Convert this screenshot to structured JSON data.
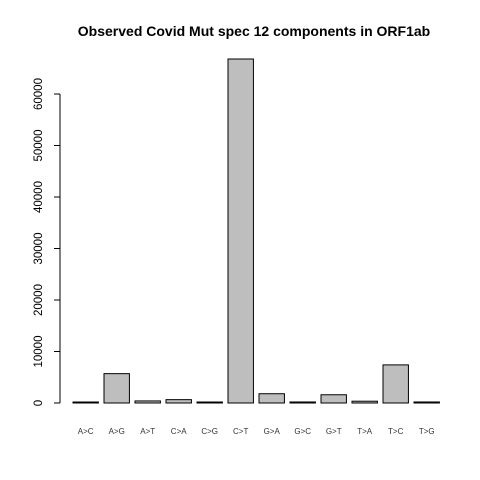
{
  "chart_data": {
    "type": "bar",
    "title": "Observed Covid Mut spec 12 components in ORF1ab",
    "xlabel": "",
    "ylabel": "",
    "categories": [
      "A>C",
      "A>G",
      "A>T",
      "C>A",
      "C>G",
      "C>T",
      "G>A",
      "G>C",
      "G>T",
      "T>A",
      "T>C",
      "T>G"
    ],
    "values": [
      150,
      5700,
      400,
      650,
      50,
      66800,
      1800,
      200,
      1600,
      350,
      7400,
      200
    ],
    "ylim": [
      0,
      66800
    ],
    "yticks": [
      0,
      10000,
      20000,
      30000,
      40000,
      50000,
      60000
    ],
    "ytick_labels": [
      "0",
      "10000",
      "20000",
      "30000",
      "40000",
      "50000",
      "60000"
    ],
    "bar_color": "#bebebe",
    "grid": false,
    "legend": "none"
  }
}
